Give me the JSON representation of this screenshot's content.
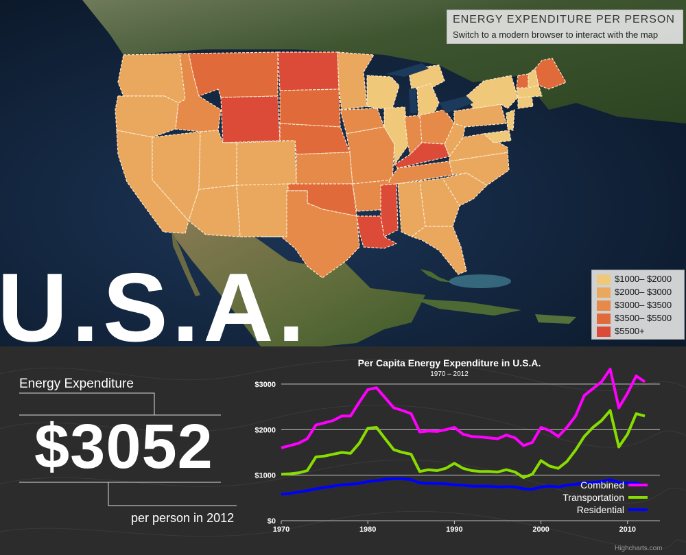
{
  "map": {
    "title": "ENERGY EXPENDITURE PER PERSON",
    "subtitle": "Switch to a modern browser to interact with the map",
    "big_label": "U.S.A.",
    "legend": [
      {
        "label": "$1000– $2000",
        "color": "#f0c87a"
      },
      {
        "label": "$2000– $3000",
        "color": "#eaa85e"
      },
      {
        "label": "$3000– $3500",
        "color": "#e68a4a"
      },
      {
        "label": "$3500– $5500",
        "color": "#e06a3a"
      },
      {
        "label": "$5500+",
        "color": "#dc4a38"
      }
    ]
  },
  "summary": {
    "label": "Energy Expenditure",
    "value": "$3052",
    "sublabel": "per person in 2012"
  },
  "chart_data": {
    "type": "line",
    "title": "Per Capita Energy Expenditure in U.S.A.",
    "subtitle": "1970 – 2012",
    "xlabel": "",
    "ylabel": "",
    "xlim": [
      1970,
      2012
    ],
    "ylim": [
      0,
      3300
    ],
    "x_ticks": [
      1970,
      1980,
      1990,
      2000,
      2010
    ],
    "x_tick_labels": [
      "1970",
      "1980",
      "1990",
      "2000",
      "2010"
    ],
    "y_ticks": [
      0,
      1000,
      2000,
      3000
    ],
    "y_tick_labels": [
      "$0",
      "$1000",
      "$2000",
      "$3000"
    ],
    "legend_position": "bottom-right",
    "credit": "Highcharts.com",
    "x": [
      1970,
      1971,
      1972,
      1973,
      1974,
      1975,
      1976,
      1977,
      1978,
      1979,
      1980,
      1981,
      1982,
      1983,
      1984,
      1985,
      1986,
      1987,
      1988,
      1989,
      1990,
      1991,
      1992,
      1993,
      1994,
      1995,
      1996,
      1997,
      1998,
      1999,
      2000,
      2001,
      2002,
      2003,
      2004,
      2005,
      2006,
      2007,
      2008,
      2009,
      2010,
      2011,
      2012
    ],
    "series": [
      {
        "name": "Combined",
        "color": "#ff00ff",
        "values": [
          1600,
          1650,
          1700,
          1800,
          2100,
          2150,
          2200,
          2300,
          2300,
          2600,
          2880,
          2920,
          2700,
          2480,
          2420,
          2350,
          1950,
          1970,
          1960,
          2000,
          2050,
          1900,
          1850,
          1840,
          1820,
          1800,
          1880,
          1820,
          1650,
          1720,
          2050,
          1980,
          1850,
          2050,
          2300,
          2750,
          2900,
          3050,
          3330,
          2480,
          2800,
          3180,
          3050
        ]
      },
      {
        "name": "Transportation",
        "color": "#88dd00",
        "values": [
          1020,
          1030,
          1050,
          1100,
          1400,
          1420,
          1460,
          1500,
          1480,
          1700,
          2030,
          2050,
          1800,
          1560,
          1500,
          1460,
          1080,
          1120,
          1100,
          1150,
          1260,
          1150,
          1100,
          1080,
          1080,
          1070,
          1120,
          1070,
          950,
          1020,
          1320,
          1200,
          1150,
          1300,
          1550,
          1850,
          2050,
          2200,
          2420,
          1620,
          1900,
          2350,
          2300
        ]
      },
      {
        "name": "Residential",
        "color": "#0000ff",
        "values": [
          580,
          600,
          630,
          660,
          700,
          730,
          760,
          790,
          800,
          820,
          860,
          880,
          910,
          920,
          920,
          900,
          830,
          820,
          820,
          810,
          790,
          780,
          760,
          760,
          760,
          740,
          750,
          740,
          700,
          690,
          740,
          760,
          740,
          780,
          800,
          830,
          840,
          860,
          900,
          840,
          830,
          830,
          760
        ]
      }
    ]
  }
}
